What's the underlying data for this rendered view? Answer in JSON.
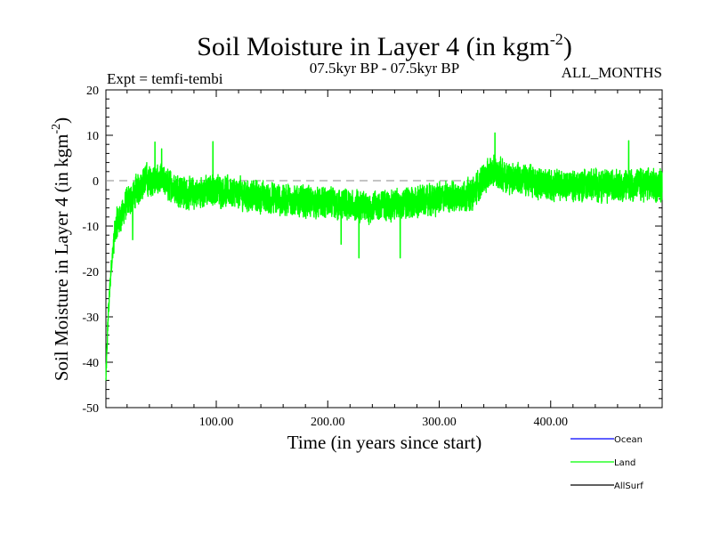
{
  "chart_data": {
    "type": "line",
    "title": "Soil Moisture in Layer 4 (in kgm",
    "title_sup": "-2",
    "title_close": ")",
    "subtitle_left": "Expt = temfi-tembi",
    "subtitle_center": "07.5kyr BP - 07.5kyr BP",
    "subtitle_right": "ALL_MONTHS",
    "ylabel": "Soil Moisture in Layer 4 (in kgm",
    "ylabel_sup": "-2",
    "ylabel_close": ")",
    "xlabel": "Time (in years since start)",
    "xlim": [
      1,
      500
    ],
    "ylim": [
      -50,
      20
    ],
    "x_ticks": [
      100,
      200,
      300,
      400
    ],
    "x_tick_labels": [
      "100.00",
      "200.00",
      "300.00",
      "400.00"
    ],
    "y_ticks": [
      -50,
      -40,
      -30,
      -20,
      -10,
      0,
      10,
      20
    ],
    "y_tick_labels": [
      "-50",
      "-40",
      "-30",
      "-20",
      "-10",
      "0",
      "10",
      "20"
    ],
    "reference_line": 0,
    "colors": {
      "ocean": "#0000ff",
      "land": "#00ff00",
      "allsurf": "#000000",
      "zero_line": "#888888"
    },
    "legend": [
      {
        "name": "Ocean",
        "color": "#0000ff"
      },
      {
        "name": "Land",
        "color": "#00ff00"
      },
      {
        "name": "AllSurf",
        "color": "#000000"
      }
    ],
    "series": [
      {
        "name": "Land",
        "color": "#00ff00",
        "generated": true,
        "samples_per_year": 12,
        "noise_amplitude": 4.5,
        "trend_knots": [
          [
            1,
            -44
          ],
          [
            3,
            -30
          ],
          [
            6,
            -18
          ],
          [
            10,
            -10
          ],
          [
            20,
            -5
          ],
          [
            35,
            0
          ],
          [
            50,
            0
          ],
          [
            75,
            -3
          ],
          [
            100,
            -2
          ],
          [
            150,
            -4
          ],
          [
            200,
            -5
          ],
          [
            230,
            -6
          ],
          [
            270,
            -5
          ],
          [
            300,
            -4
          ],
          [
            330,
            -3
          ],
          [
            345,
            2
          ],
          [
            360,
            1
          ],
          [
            400,
            -1
          ],
          [
            450,
            -1
          ],
          [
            480,
            -1
          ],
          [
            500,
            -1
          ]
        ],
        "spikes": [
          [
            45,
            8.5
          ],
          [
            51,
            7
          ],
          [
            97,
            8.6
          ],
          [
            228,
            -17
          ],
          [
            265,
            -17
          ],
          [
            350,
            10.5
          ],
          [
            470,
            8.8
          ],
          [
            25,
            -13
          ],
          [
            212,
            -14
          ]
        ]
      },
      {
        "name": "Ocean",
        "color": "#0000ff",
        "values": []
      },
      {
        "name": "AllSurf",
        "color": "#000000",
        "values": []
      }
    ]
  }
}
